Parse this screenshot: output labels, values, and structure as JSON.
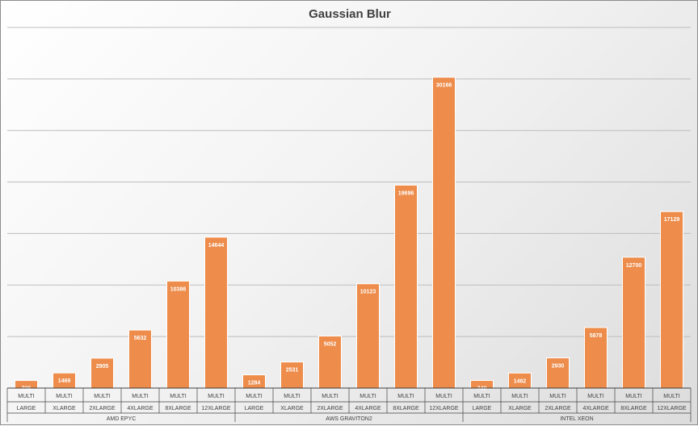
{
  "chart_data": {
    "type": "bar",
    "title": "Gaussian Blur",
    "xlabel": "",
    "ylabel": "",
    "ylim": [
      0,
      35000
    ],
    "grid": true,
    "bar_color": "#ED8C4B",
    "groups": [
      "AMD EPYC",
      "AWS GRAVITON2",
      "INTEL XEON"
    ],
    "categories": [
      {
        "line1": "MULTI",
        "line2": "LARGE",
        "group": 0
      },
      {
        "line1": "MULTI",
        "line2": "XLARGE",
        "group": 0
      },
      {
        "line1": "MULTI",
        "line2": "2XLARGE",
        "group": 0
      },
      {
        "line1": "MULTI",
        "line2": "4XLARGE",
        "group": 0
      },
      {
        "line1": "MULTI",
        "line2": "8XLARGE",
        "group": 0
      },
      {
        "line1": "MULTI",
        "line2": "12XLARGE",
        "group": 0
      },
      {
        "line1": "MULTI",
        "line2": "LARGE",
        "group": 1
      },
      {
        "line1": "MULTI",
        "line2": "XLARGE",
        "group": 1
      },
      {
        "line1": "MULTI",
        "line2": "2XLARGE",
        "group": 1
      },
      {
        "line1": "MULTI",
        "line2": "4XLARGE",
        "group": 1
      },
      {
        "line1": "MULTI",
        "line2": "8XLARGE",
        "group": 1
      },
      {
        "line1": "MULTI",
        "line2": "12XLARGE",
        "group": 1
      },
      {
        "line1": "MULTI",
        "line2": "LARGE",
        "group": 2
      },
      {
        "line1": "MULTI",
        "line2": "XLARGE",
        "group": 2
      },
      {
        "line1": "MULTI",
        "line2": "2XLARGE",
        "group": 2
      },
      {
        "line1": "MULTI",
        "line2": "4XLARGE",
        "group": 2
      },
      {
        "line1": "MULTI",
        "line2": "8XLARGE",
        "group": 2
      },
      {
        "line1": "MULTI",
        "line2": "12XLARGE",
        "group": 2
      }
    ],
    "values": [
      735,
      1469,
      2905,
      5632,
      10386,
      14644,
      1284,
      2531,
      5052,
      10123,
      19696,
      30166,
      740,
      1462,
      2930,
      5878,
      12700,
      17129
    ]
  }
}
